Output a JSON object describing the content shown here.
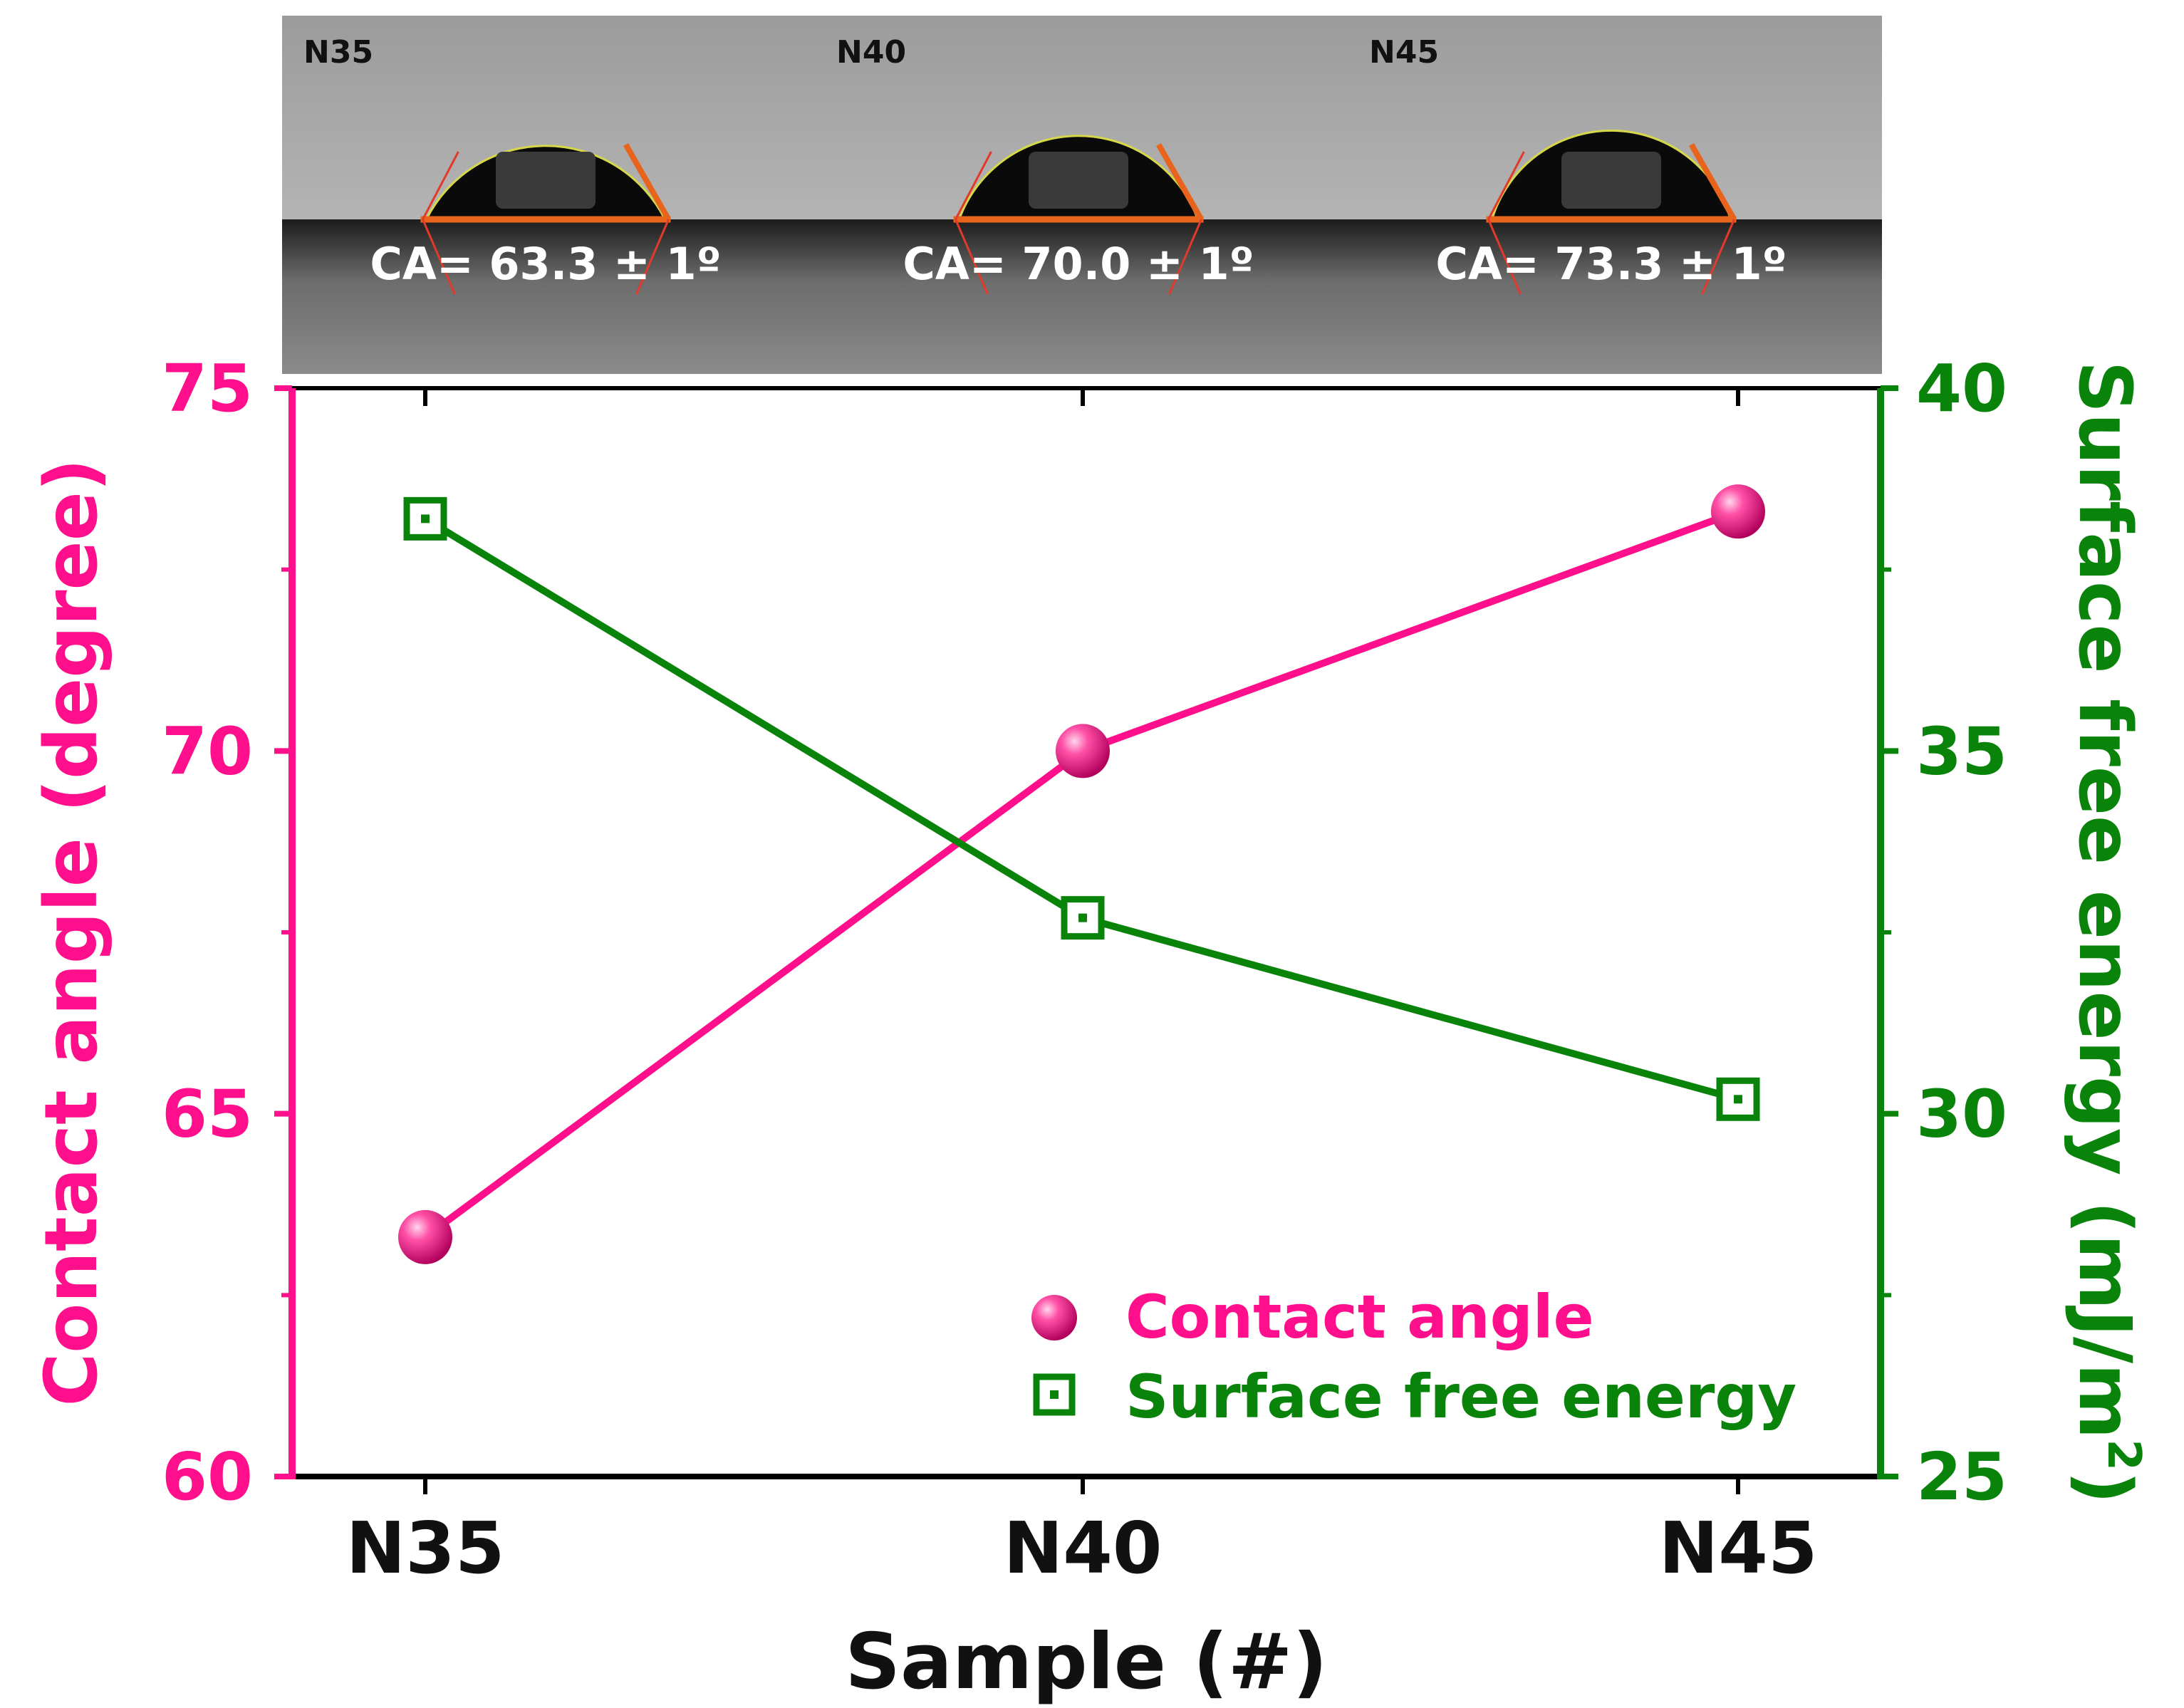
{
  "chart_data": {
    "type": "line",
    "categories": [
      "N35",
      "N40",
      "N45"
    ],
    "xlabel": "Sample (#)",
    "y_left": {
      "label": "Contact angle (degree)",
      "range": [
        60,
        75
      ],
      "ticks": [
        "60",
        "65",
        "70",
        "75"
      ],
      "color": "#ff0f8b"
    },
    "y_right": {
      "label": "Surface free energy (mJ/m",
      "label_sup": "2",
      "label_end": ")",
      "range": [
        25,
        40
      ],
      "ticks": [
        "25",
        "30",
        "35",
        "40"
      ],
      "color": "#0a830a"
    },
    "series": [
      {
        "name": "Contact angle",
        "axis": "left",
        "marker": "sphere",
        "values": [
          63.3,
          70.0,
          73.3
        ]
      },
      {
        "name": "Surface free energy",
        "axis": "right",
        "marker": "open-square",
        "values": [
          38.2,
          32.7,
          30.2
        ]
      }
    ],
    "legend_placement": "bottom-right",
    "grid": false
  },
  "images": [
    {
      "label": "N35",
      "caption": "CA= 63.3 ± 1º",
      "angle": 63.3
    },
    {
      "label": "N40",
      "caption": "CA= 70.0 ± 1º",
      "angle": 70.0
    },
    {
      "label": "N45",
      "caption": "CA= 73.3 ± 1º",
      "angle": 73.3
    }
  ]
}
